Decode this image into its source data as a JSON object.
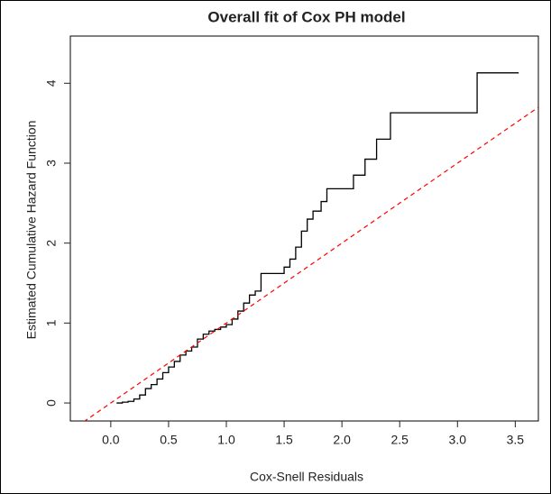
{
  "chart_data": {
    "type": "step",
    "title": "Overall fit of Cox PH model",
    "x_label": "Cox-Snell Residuals",
    "y_label": "Estimated Cumulative Hazard Function",
    "x": [
      0.05,
      0.1,
      0.15,
      0.2,
      0.25,
      0.3,
      0.35,
      0.4,
      0.45,
      0.5,
      0.55,
      0.6,
      0.65,
      0.7,
      0.75,
      0.8,
      0.85,
      0.9,
      0.95,
      1.0,
      1.05,
      1.1,
      1.15,
      1.2,
      1.25,
      1.3,
      1.42,
      1.5,
      1.55,
      1.6,
      1.65,
      1.7,
      1.75,
      1.82,
      1.87,
      2.1,
      2.2,
      2.3,
      2.42,
      3.17,
      3.53
    ],
    "series": [
      {
        "color": "#000000",
        "values": [
          0.0,
          0.01,
          0.02,
          0.05,
          0.1,
          0.18,
          0.23,
          0.3,
          0.38,
          0.45,
          0.52,
          0.6,
          0.65,
          0.7,
          0.8,
          0.86,
          0.9,
          0.92,
          0.95,
          0.98,
          1.05,
          1.15,
          1.25,
          1.35,
          1.4,
          1.62,
          1.62,
          1.7,
          1.8,
          1.95,
          2.15,
          2.3,
          2.4,
          2.52,
          2.68,
          2.85,
          3.05,
          3.3,
          3.63,
          4.13,
          4.13
        ]
      }
    ],
    "reference_line": {
      "intercept": 0,
      "slope": 1,
      "color": "#ff0000"
    },
    "xlim": [
      -0.35,
      3.7
    ],
    "ylim": [
      -0.225,
      4.59
    ],
    "xticks": [
      {
        "value": 0,
        "label": "0.0"
      },
      {
        "value": 0.5,
        "label": "0.5"
      },
      {
        "value": 1,
        "label": "1.0"
      },
      {
        "value": 1.5,
        "label": "1.5"
      },
      {
        "value": 2,
        "label": "2.0"
      },
      {
        "value": 2.5,
        "label": "2.5"
      },
      {
        "value": 3,
        "label": "3.0"
      },
      {
        "value": 3.5,
        "label": "3.5"
      }
    ],
    "yticks": [
      0,
      1,
      2,
      3,
      4
    ]
  }
}
